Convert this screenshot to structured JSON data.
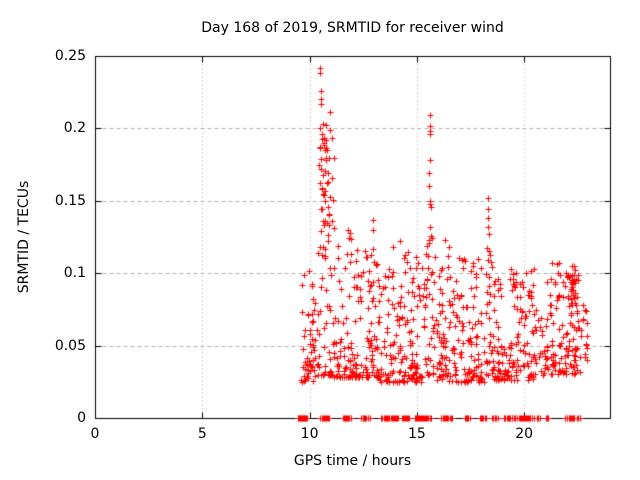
{
  "chart_data": {
    "type": "scatter",
    "title": "Day 168 of 2019, SRMTID for receiver wind",
    "xlabel": "GPS time / hours",
    "ylabel": "SRMTID / TECUs",
    "xlim": [
      0,
      24
    ],
    "ylim": [
      0,
      0.25
    ],
    "xticks": [
      0,
      5,
      10,
      15,
      20
    ],
    "xtick_labels": [
      "0",
      "5",
      "10",
      "15",
      "20"
    ],
    "yticks": [
      0,
      0.05,
      0.1,
      0.15,
      0.2,
      0.25
    ],
    "ytick_labels": [
      "0",
      "0.05",
      "0.1",
      "0.15",
      "0.2",
      "0.25"
    ],
    "grid": true,
    "legend": "none",
    "marker": "plus",
    "marker_size_px": 7,
    "marker_color": "#ff0000",
    "grid_color": "#b0b0b0",
    "axis_color": "#000000",
    "background_color": "#ffffff",
    "seed": 168,
    "point_clusters_format": "[x_start, x_end, count, y_min, y_max, low_skew]",
    "point_clusters": [
      [
        9.62,
        10.35,
        55,
        0.025,
        0.102,
        1.6
      ],
      [
        10.38,
        11.15,
        55,
        0.03,
        0.2,
        2.6
      ],
      [
        10.45,
        10.95,
        28,
        0.1,
        0.205,
        1.2
      ],
      [
        11.15,
        12.1,
        65,
        0.028,
        0.132,
        2.2
      ],
      [
        12.1,
        13.25,
        90,
        0.028,
        0.118,
        2.0
      ],
      [
        13.25,
        15.25,
        150,
        0.025,
        0.115,
        2.0
      ],
      [
        15.3,
        15.9,
        42,
        0.03,
        0.125,
        1.8
      ],
      [
        15.9,
        18.15,
        165,
        0.025,
        0.112,
        2.0
      ],
      [
        18.2,
        18.55,
        28,
        0.03,
        0.12,
        1.6
      ],
      [
        18.55,
        20.55,
        145,
        0.026,
        0.103,
        1.9
      ],
      [
        20.55,
        21.05,
        22,
        0.03,
        0.075,
        1.5
      ],
      [
        21.05,
        21.85,
        55,
        0.03,
        0.108,
        1.8
      ],
      [
        21.9,
        22.6,
        65,
        0.03,
        0.105,
        1.5
      ],
      [
        22.15,
        22.5,
        22,
        0.072,
        0.096,
        1.0
      ],
      [
        22.6,
        22.92,
        16,
        0.038,
        0.078,
        1.2
      ]
    ],
    "feature_points": [
      [
        10.48,
        0.242
      ],
      [
        10.49,
        0.238
      ],
      [
        10.52,
        0.226
      ],
      [
        10.53,
        0.22
      ],
      [
        10.55,
        0.217
      ],
      [
        10.95,
        0.211
      ],
      [
        10.47,
        0.2
      ],
      [
        10.96,
        0.199
      ],
      [
        10.6,
        0.196
      ],
      [
        10.66,
        0.19
      ],
      [
        10.71,
        0.185
      ],
      [
        10.76,
        0.178
      ],
      [
        10.55,
        0.172
      ],
      [
        10.62,
        0.168
      ],
      [
        10.81,
        0.162
      ],
      [
        10.58,
        0.158
      ],
      [
        10.67,
        0.154
      ],
      [
        10.73,
        0.15
      ],
      [
        10.86,
        0.146
      ],
      [
        10.9,
        0.14
      ],
      [
        11.05,
        0.136
      ],
      [
        11.16,
        0.131
      ],
      [
        11.9,
        0.128
      ],
      [
        11.93,
        0.113
      ],
      [
        12.95,
        0.137
      ],
      [
        12.96,
        0.13
      ],
      [
        12.97,
        0.117
      ],
      [
        12.99,
        0.108
      ],
      [
        13.9,
        0.118
      ],
      [
        14.2,
        0.122
      ],
      [
        15.61,
        0.209
      ],
      [
        15.6,
        0.202
      ],
      [
        15.62,
        0.198
      ],
      [
        15.6,
        0.196
      ],
      [
        15.61,
        0.178
      ],
      [
        15.58,
        0.169
      ],
      [
        15.58,
        0.16
      ],
      [
        15.62,
        0.15
      ],
      [
        15.63,
        0.148
      ],
      [
        15.64,
        0.146
      ],
      [
        15.59,
        0.132
      ],
      [
        15.68,
        0.126
      ],
      [
        15.7,
        0.124
      ],
      [
        16.3,
        0.123
      ],
      [
        16.5,
        0.118
      ],
      [
        17.2,
        0.11
      ],
      [
        18.31,
        0.152
      ],
      [
        18.32,
        0.144
      ],
      [
        18.33,
        0.138
      ],
      [
        18.31,
        0.132
      ],
      [
        18.35,
        0.127
      ],
      [
        18.36,
        0.115
      ],
      [
        18.45,
        0.108
      ],
      [
        19.4,
        0.103
      ],
      [
        19.62,
        0.1
      ],
      [
        20.1,
        0.1
      ],
      [
        21.3,
        0.107
      ],
      [
        21.62,
        0.107
      ],
      [
        22.3,
        0.105
      ],
      [
        22.36,
        0.102
      ]
    ],
    "zero_value_segments_format": "[x_start, x_end, count] at y=0",
    "zero_value_segments": [
      [
        9.45,
        9.85,
        14
      ],
      [
        10.5,
        10.9,
        10
      ],
      [
        11.55,
        11.95,
        9
      ],
      [
        12.4,
        12.8,
        9
      ],
      [
        13.35,
        14.15,
        16
      ],
      [
        14.3,
        14.65,
        8
      ],
      [
        14.9,
        15.45,
        14
      ],
      [
        15.55,
        15.65,
        3
      ],
      [
        16.1,
        16.45,
        8
      ],
      [
        16.55,
        16.65,
        3
      ],
      [
        17.25,
        17.45,
        6
      ],
      [
        17.95,
        18.2,
        6
      ],
      [
        18.5,
        18.75,
        6
      ],
      [
        19.05,
        19.65,
        14
      ],
      [
        19.75,
        20.45,
        16
      ],
      [
        20.6,
        20.72,
        4
      ],
      [
        21.0,
        21.12,
        4
      ],
      [
        21.9,
        22.35,
        12
      ],
      [
        22.5,
        22.62,
        4
      ]
    ]
  }
}
